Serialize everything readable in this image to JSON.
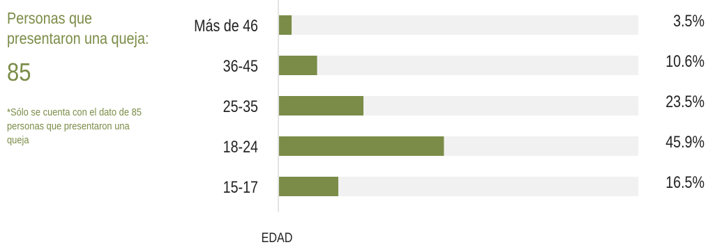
{
  "panel": {
    "title": "Personas que presentaron una queja:",
    "count": "85",
    "note": "*Sólo se cuenta con el dato de 85 personas que presentaron una queja"
  },
  "colors": {
    "bar": "#7a8c47",
    "track": "#f1f1f1",
    "axis": "#e3e3e3",
    "accent_text": "#7a8c47"
  },
  "chart_data": {
    "type": "bar",
    "orientation": "horizontal",
    "categories": [
      "Más de 46",
      "36-45",
      "25-35",
      "18-24",
      "15-17"
    ],
    "values": [
      3.5,
      10.6,
      23.5,
      45.9,
      16.5
    ],
    "value_labels": [
      "3.5%",
      "10.6%",
      "23.5%",
      "45.9%",
      "16.5%"
    ],
    "unit": "%",
    "xlim": [
      0,
      100
    ],
    "title": "",
    "xlabel": "",
    "ylabel": "EDAD",
    "grid": false,
    "legend": "none"
  }
}
